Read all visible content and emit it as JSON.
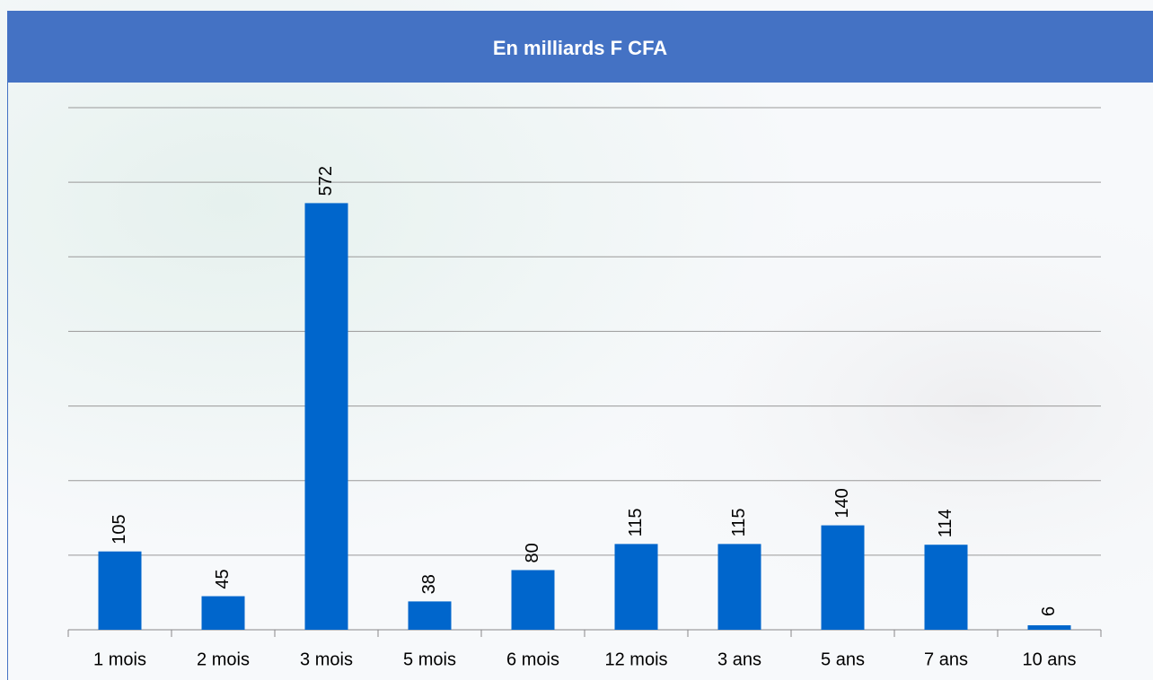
{
  "chart_data": {
    "type": "bar",
    "title": "En milliards F CFA",
    "categories": [
      "1 mois",
      "2 mois",
      "3 mois",
      "5 mois",
      "6 mois",
      "12 mois",
      "3 ans",
      "5 ans",
      "7 ans",
      "10 ans"
    ],
    "values": [
      105,
      45,
      572,
      38,
      80,
      115,
      115,
      140,
      114,
      6
    ],
    "color": "#0066cc",
    "ylim": [
      0,
      700
    ],
    "yticks": [
      0,
      100,
      200,
      300,
      400,
      500,
      600,
      700
    ],
    "grid": true
  }
}
